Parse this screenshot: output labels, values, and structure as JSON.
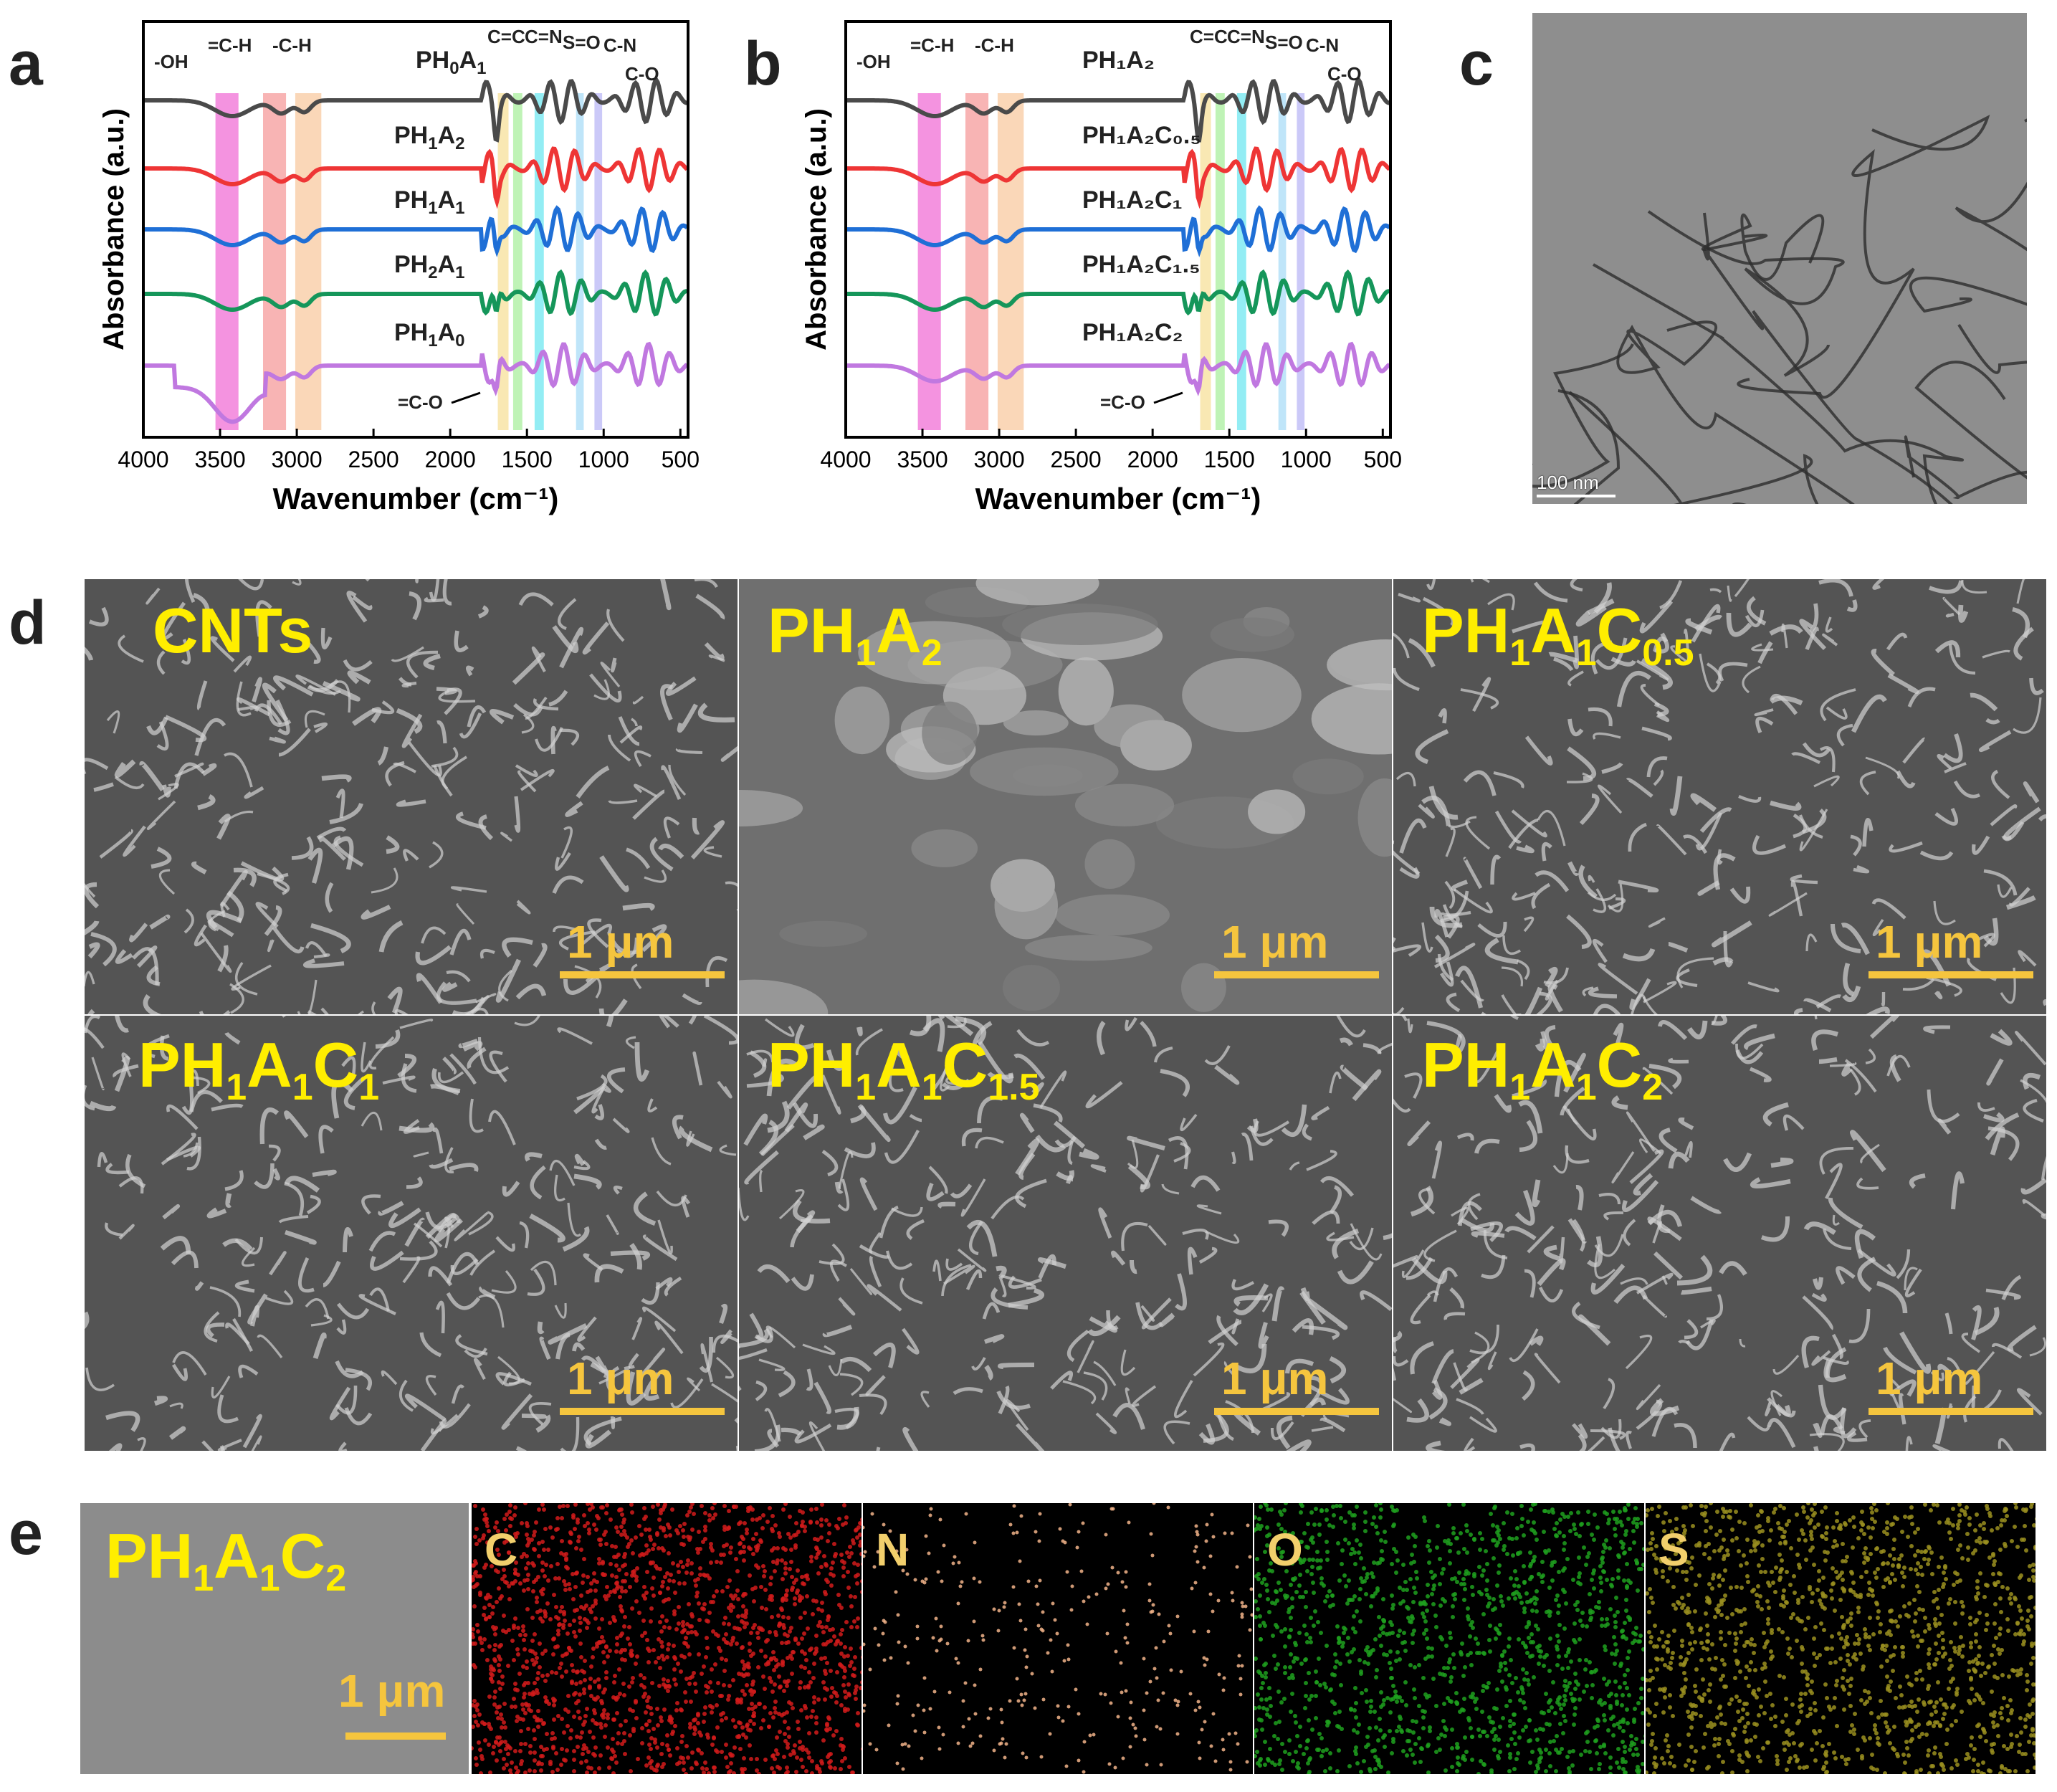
{
  "panels": {
    "a": "a",
    "b": "b",
    "c": "c",
    "d": "d",
    "e": "e"
  },
  "ftir": {
    "ylabel": "Absorbance (a.u.)",
    "xlabel": "Wavenumber (cm⁻¹)",
    "ticks": [
      "4000",
      "3500",
      "3000",
      "2500",
      "2000",
      "1500",
      "1000",
      "500"
    ],
    "bands": [
      {
        "label": "-OH",
        "color": "#f06fd6"
      },
      {
        "label": "=C-H",
        "color": "#f59b9b"
      },
      {
        "label": "-C-H",
        "color": "#f8c9a0"
      },
      {
        "label": "C=C",
        "color": "#f7e09a"
      },
      {
        "label": "C=N",
        "color": "#a9ef9d"
      },
      {
        "label": "S=O",
        "color": "#6fe7f0"
      },
      {
        "label": "C-N",
        "color": "#a9dcf7"
      },
      {
        "label": "C-O",
        "color": "#b9b7f5"
      },
      {
        "label": "=C-O",
        "color": "#000000"
      }
    ],
    "a_series": [
      {
        "base": "PH",
        "s1": "0",
        "m": "A",
        "s2": "1",
        "color": "#4a4a4a"
      },
      {
        "base": "PH",
        "s1": "1",
        "m": "A",
        "s2": "2",
        "color": "#ee3535"
      },
      {
        "base": "PH",
        "s1": "1",
        "m": "A",
        "s2": "1",
        "color": "#1f6fd6"
      },
      {
        "base": "PH",
        "s1": "2",
        "m": "A",
        "s2": "1",
        "color": "#15965a"
      },
      {
        "base": "PH",
        "s1": "1",
        "m": "A",
        "s2": "0",
        "color": "#c078e0"
      }
    ],
    "b_series": [
      {
        "label": "PH₁A₂",
        "color": "#4a4a4a"
      },
      {
        "label": "PH₁A₂C₀.₅",
        "color": "#ee3535"
      },
      {
        "label": "PH₁A₂C₁",
        "color": "#1f6fd6"
      },
      {
        "label": "PH₁A₂C₁.₅",
        "color": "#15965a"
      },
      {
        "label": "PH₁A₂C₂",
        "color": "#c078e0"
      }
    ]
  },
  "tem": {
    "scale": "100 nm"
  },
  "sem": {
    "scale": "1 μm",
    "tiles": [
      {
        "parts": [
          [
            "CNTs",
            ""
          ]
        ]
      },
      {
        "parts": [
          [
            "PH",
            "1"
          ],
          [
            "A",
            "2"
          ]
        ]
      },
      {
        "parts": [
          [
            "PH",
            "1"
          ],
          [
            "A",
            "1"
          ],
          [
            "C",
            "0.5"
          ]
        ]
      },
      {
        "parts": [
          [
            "PH",
            "1"
          ],
          [
            "A",
            "1"
          ],
          [
            "C",
            "1"
          ]
        ]
      },
      {
        "parts": [
          [
            "PH",
            "1"
          ],
          [
            "A",
            "1"
          ],
          [
            "C",
            "1.5"
          ]
        ]
      },
      {
        "parts": [
          [
            "PH",
            "1"
          ],
          [
            "A",
            "1"
          ],
          [
            "C",
            "2"
          ]
        ]
      }
    ]
  },
  "eds": {
    "sample": {
      "parts": [
        [
          "PH",
          "1"
        ],
        [
          "A",
          "1"
        ],
        [
          "C",
          "2"
        ]
      ]
    },
    "scale": "1 μm",
    "maps": [
      {
        "label": "C",
        "color": "#d11b1b"
      },
      {
        "label": "N",
        "color": "#f2b48a"
      },
      {
        "label": "O",
        "color": "#1fa01f"
      },
      {
        "label": "S",
        "color": "#9a8f20"
      }
    ]
  }
}
